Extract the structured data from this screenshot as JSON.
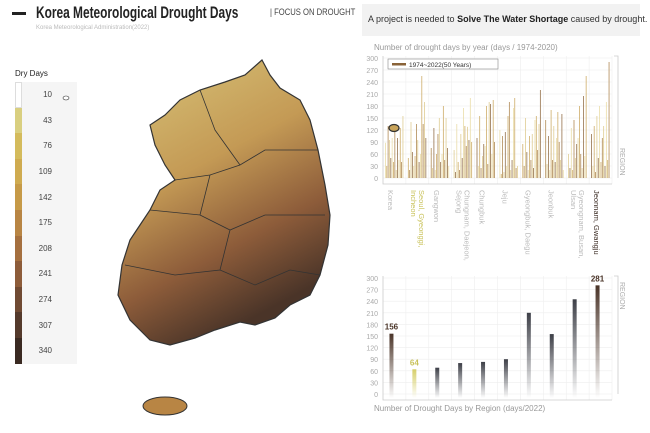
{
  "header": {
    "title": "Korea Meteorological Drought Days",
    "tag": "FOCUS ON DROUGHT",
    "source": "Korea Meteorological Administration(2022)"
  },
  "banner": {
    "pre": "A project is needed to ",
    "bold": "Solve The Water Shortage",
    "post": " caused by drought."
  },
  "legend": {
    "title": "Dry Days",
    "steps": [
      {
        "label": "10",
        "color": "#ffffff"
      },
      {
        "label": "43",
        "color": "#d9cf80"
      },
      {
        "label": "76",
        "color": "#d4bb5c"
      },
      {
        "label": "109",
        "color": "#cfab50"
      },
      {
        "label": "142",
        "color": "#c69a48"
      },
      {
        "label": "175",
        "color": "#b88544"
      },
      {
        "label": "208",
        "color": "#a5703f"
      },
      {
        "label": "241",
        "color": "#8d5c3a"
      },
      {
        "label": "274",
        "color": "#704a33"
      },
      {
        "label": "307",
        "color": "#543a2c"
      },
      {
        "label": "340",
        "color": "#3a2a22"
      }
    ]
  },
  "chart_data": [
    {
      "type": "bar",
      "title": "Number of drought days by year (days / 1974-2020)",
      "legend": "1974~2022(50 Years)",
      "side_label": "REGION",
      "ylim": [
        0,
        300
      ],
      "yticks": [
        0,
        30,
        60,
        90,
        120,
        150,
        180,
        210,
        240,
        270,
        300
      ],
      "categories": [
        "Korea",
        "Seoul, Gyeonggi, Incheon",
        "Gangwon",
        "Chungnam, Daejeon, Sejong",
        "Chungbuk",
        "Jeju",
        "Gyeongbuk, Daegu",
        "Jeonbuk",
        "Gyeongnam, Busan, Ulsan",
        "Jeonnam, Gwangju"
      ],
      "series_by_region": [
        [
          88,
          30,
          130,
          95,
          50,
          100,
          40,
          115,
          20,
          100,
          45,
          125,
          40,
          155
        ],
        [
          50,
          20,
          140,
          65,
          30,
          55,
          135,
          95,
          40,
          60,
          255,
          135,
          190,
          100
        ],
        [
          75,
          25,
          125,
          20,
          60,
          110,
          150,
          40,
          60,
          180,
          45,
          150,
          75,
          30
        ],
        [
          70,
          15,
          135,
          40,
          20,
          110,
          50,
          175,
          130,
          80,
          128,
          95,
          200,
          90
        ],
        [
          100,
          30,
          155,
          25,
          55,
          85,
          80,
          180,
          35,
          190,
          185,
          60,
          195,
          90
        ],
        [
          120,
          10,
          105,
          15,
          115,
          30,
          155,
          190,
          20,
          45,
          175,
          200,
          25,
          30
        ],
        [
          85,
          30,
          150,
          65,
          20,
          105,
          45,
          110,
          25,
          145,
          155,
          70,
          135,
          220
        ],
        [
          145,
          35,
          105,
          20,
          170,
          45,
          130,
          40,
          100,
          165,
          90,
          45,
          160,
          20
        ],
        [
          60,
          25,
          125,
          20,
          145,
          50,
          85,
          100,
          180,
          60,
          25,
          205,
          55,
          255
        ],
        [
          110,
          30,
          130,
          15,
          155,
          50,
          180,
          40,
          100,
          130,
          30,
          190,
          45,
          290
        ]
      ]
    },
    {
      "type": "bar",
      "title": "Number of Drought Days by Region (days/2022)",
      "side_label": "REGION",
      "ylim": [
        0,
        300
      ],
      "yticks": [
        0,
        30,
        60,
        90,
        120,
        150,
        180,
        210,
        240,
        270,
        300
      ],
      "categories": [
        "Korea",
        "Seoul, Gyeonggi, Incheon",
        "Gangwon",
        "Chungnam, Daejeon, Sejong",
        "Chungbuk",
        "Jeju",
        "Gyeongbuk, Daegu",
        "Jeonbuk",
        "Gyeongnam, Busan, Ulsan",
        "Jeonnam, Gwangju"
      ],
      "values": [
        156,
        64,
        68,
        80,
        83,
        90,
        210,
        155,
        245,
        281
      ],
      "data_labels": {
        "0": "156",
        "1": "64",
        "9": "281"
      }
    }
  ],
  "region_label_colors": {
    "highlight": "#c9c25a",
    "dark": "#3a2a22",
    "muted": "#bbbbbb"
  }
}
